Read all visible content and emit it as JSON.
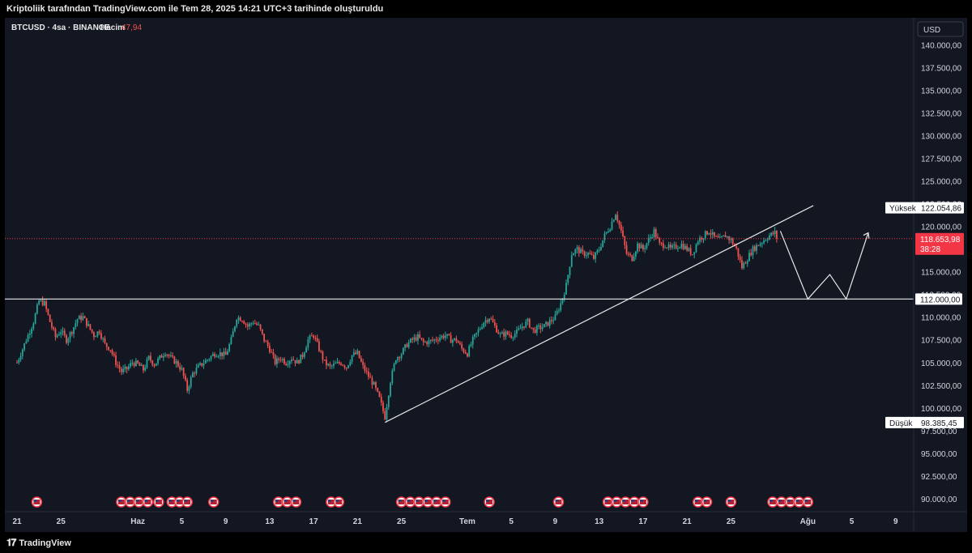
{
  "header": {
    "attribution": "Kriptoliik tarafından TradingView.com ile Tem 28, 2025 14:21 UTC+3 tarihinde oluşturuldu"
  },
  "footer": {
    "brand": "TradingView",
    "logo": "tradingview-logo"
  },
  "legend": {
    "symbol": "BTCUSD · 4sa · BINANCE",
    "volume_label": "Hacim",
    "volume_value": "47,94"
  },
  "currency": "USD",
  "colors": {
    "up": "#26a69a",
    "down": "#ef5350",
    "background": "#131722",
    "price_line": "#f23645",
    "line": "#e8e8e8"
  },
  "markers": {
    "high_label": "Yüksek",
    "high_value": "122.054,86",
    "low_label": "Düşük",
    "low_value": "98.385,45",
    "current_price": "118.653,98",
    "countdown": "38:28",
    "level_value": "112.000,00"
  },
  "event_icon": "us-flag-icon",
  "chart_data": {
    "type": "candlestick",
    "title": "BTCUSD · 4sa · BINANCE",
    "ylim": [
      89000,
      142200
    ],
    "y_ticks": [
      {
        "v": 140000,
        "label": "140.000,00"
      },
      {
        "v": 137500,
        "label": "137.500,00"
      },
      {
        "v": 135000,
        "label": "135.000,00"
      },
      {
        "v": 132500,
        "label": "132.500,00"
      },
      {
        "v": 130000,
        "label": "130.000,00"
      },
      {
        "v": 127500,
        "label": "127.500,00"
      },
      {
        "v": 125000,
        "label": "125.000,00"
      },
      {
        "v": 122500,
        "label": "122.500,00"
      },
      {
        "v": 120000,
        "label": "120.000,00"
      },
      {
        "v": 117500,
        "label": "117.500,00"
      },
      {
        "v": 115000,
        "label": "115.000,00"
      },
      {
        "v": 112500,
        "label": "112.500,00"
      },
      {
        "v": 110000,
        "label": "110.000,00"
      },
      {
        "v": 107500,
        "label": "107.500,00"
      },
      {
        "v": 105000,
        "label": "105.000,00"
      },
      {
        "v": 102500,
        "label": "102.500,00"
      },
      {
        "v": 100000,
        "label": "100.000,00"
      },
      {
        "v": 97500,
        "label": "97.500,00"
      },
      {
        "v": 95000,
        "label": "95.000,00"
      },
      {
        "v": 92500,
        "label": "92.500,00"
      },
      {
        "v": 90000,
        "label": "90.000,00"
      }
    ],
    "x_ticks": [
      {
        "day": 0,
        "label": "21"
      },
      {
        "day": 4,
        "label": "25"
      },
      {
        "day": 11,
        "label": "Haz"
      },
      {
        "day": 15,
        "label": "5"
      },
      {
        "day": 19,
        "label": "9"
      },
      {
        "day": 23,
        "label": "13"
      },
      {
        "day": 27,
        "label": "17"
      },
      {
        "day": 31,
        "label": "21"
      },
      {
        "day": 35,
        "label": "25"
      },
      {
        "day": 41,
        "label": "Tem"
      },
      {
        "day": 45,
        "label": "5"
      },
      {
        "day": 49,
        "label": "9"
      },
      {
        "day": 53,
        "label": "13"
      },
      {
        "day": 57,
        "label": "17"
      },
      {
        "day": 61,
        "label": "21"
      },
      {
        "day": 65,
        "label": "25"
      },
      {
        "day": 72,
        "label": "Ağu"
      },
      {
        "day": 76,
        "label": "5"
      },
      {
        "day": 80,
        "label": "9"
      }
    ],
    "x_note": "x values are days since May 21, 2025",
    "price_path": [
      [
        0.0,
        105000
      ],
      [
        0.5,
        106500
      ],
      [
        1.0,
        108000
      ],
      [
        1.5,
        109500
      ],
      [
        2.0,
        111800
      ],
      [
        2.5,
        111500
      ],
      [
        3.0,
        109500
      ],
      [
        3.5,
        107800
      ],
      [
        4.0,
        108500
      ],
      [
        4.5,
        107500
      ],
      [
        5.0,
        108500
      ],
      [
        5.5,
        109800
      ],
      [
        6.0,
        110000
      ],
      [
        6.5,
        109000
      ],
      [
        7.0,
        108000
      ],
      [
        7.5,
        108500
      ],
      [
        8.0,
        107000
      ],
      [
        8.5,
        106500
      ],
      [
        9.0,
        105000
      ],
      [
        9.5,
        104000
      ],
      [
        10.0,
        104300
      ],
      [
        10.5,
        105000
      ],
      [
        11.0,
        104800
      ],
      [
        11.5,
        104200
      ],
      [
        12.0,
        105500
      ],
      [
        12.5,
        104800
      ],
      [
        13.0,
        105500
      ],
      [
        13.5,
        106200
      ],
      [
        14.0,
        105500
      ],
      [
        14.5,
        105000
      ],
      [
        15.0,
        104200
      ],
      [
        15.5,
        102000
      ],
      [
        16.0,
        103800
      ],
      [
        16.5,
        104500
      ],
      [
        17.0,
        105000
      ],
      [
        17.5,
        105500
      ],
      [
        18.0,
        106000
      ],
      [
        18.5,
        106000
      ],
      [
        19.0,
        105800
      ],
      [
        19.5,
        107500
      ],
      [
        20.0,
        110000
      ],
      [
        20.5,
        109800
      ],
      [
        21.0,
        109000
      ],
      [
        21.5,
        109500
      ],
      [
        22.0,
        109000
      ],
      [
        22.5,
        107500
      ],
      [
        23.0,
        106500
      ],
      [
        23.5,
        105000
      ],
      [
        24.0,
        105500
      ],
      [
        24.5,
        105000
      ],
      [
        25.0,
        105500
      ],
      [
        25.5,
        105000
      ],
      [
        26.0,
        105800
      ],
      [
        26.5,
        107500
      ],
      [
        27.0,
        108000
      ],
      [
        27.5,
        106500
      ],
      [
        28.0,
        105000
      ],
      [
        28.5,
        104500
      ],
      [
        29.0,
        104800
      ],
      [
        29.5,
        105000
      ],
      [
        30.0,
        104500
      ],
      [
        30.5,
        105800
      ],
      [
        31.0,
        106000
      ],
      [
        31.5,
        104500
      ],
      [
        32.0,
        103500
      ],
      [
        32.5,
        102500
      ],
      [
        33.0,
        101000
      ],
      [
        33.5,
        99000
      ],
      [
        34.0,
        103000
      ],
      [
        34.5,
        105500
      ],
      [
        35.0,
        106000
      ],
      [
        35.5,
        107000
      ],
      [
        36.0,
        107500
      ],
      [
        36.5,
        107800
      ],
      [
        37.0,
        107200
      ],
      [
        37.5,
        107300
      ],
      [
        38.0,
        107500
      ],
      [
        38.5,
        107800
      ],
      [
        39.0,
        108000
      ],
      [
        39.5,
        107500
      ],
      [
        40.0,
        107500
      ],
      [
        40.5,
        106500
      ],
      [
        41.0,
        106000
      ],
      [
        41.5,
        107500
      ],
      [
        42.0,
        108500
      ],
      [
        42.5,
        109500
      ],
      [
        43.0,
        110000
      ],
      [
        43.5,
        109000
      ],
      [
        44.0,
        108000
      ],
      [
        44.5,
        108200
      ],
      [
        45.0,
        108000
      ],
      [
        45.5,
        108300
      ],
      [
        46.0,
        109000
      ],
      [
        46.5,
        109500
      ],
      [
        47.0,
        108500
      ],
      [
        47.5,
        108800
      ],
      [
        48.0,
        109000
      ],
      [
        48.5,
        109500
      ],
      [
        49.0,
        110000
      ],
      [
        49.5,
        111500
      ],
      [
        50.0,
        113500
      ],
      [
        50.5,
        117000
      ],
      [
        51.0,
        117500
      ],
      [
        51.5,
        117000
      ],
      [
        52.0,
        117000
      ],
      [
        52.5,
        116500
      ],
      [
        53.0,
        117500
      ],
      [
        53.5,
        119000
      ],
      [
        54.0,
        120000
      ],
      [
        54.5,
        121500
      ],
      [
        55.0,
        119500
      ],
      [
        55.5,
        117000
      ],
      [
        56.0,
        116500
      ],
      [
        56.5,
        118000
      ],
      [
        57.0,
        117500
      ],
      [
        57.5,
        118500
      ],
      [
        58.0,
        119500
      ],
      [
        58.5,
        118000
      ],
      [
        59.0,
        118000
      ],
      [
        59.5,
        117500
      ],
      [
        60.0,
        117800
      ],
      [
        60.5,
        118000
      ],
      [
        61.0,
        117500
      ],
      [
        61.5,
        117000
      ],
      [
        62.0,
        118500
      ],
      [
        62.5,
        119000
      ],
      [
        63.0,
        119500
      ],
      [
        63.5,
        118800
      ],
      [
        64.0,
        118500
      ],
      [
        64.5,
        119000
      ],
      [
        65.0,
        118500
      ],
      [
        65.5,
        117500
      ],
      [
        66.0,
        115500
      ],
      [
        66.5,
        116500
      ],
      [
        67.0,
        117500
      ],
      [
        67.5,
        118000
      ],
      [
        68.0,
        118500
      ],
      [
        68.5,
        119000
      ],
      [
        69.0,
        119300
      ],
      [
        69.2,
        118654
      ]
    ],
    "annotations": {
      "trendline": [
        [
          33.5,
          98400
        ],
        [
          72.5,
          122300
        ]
      ],
      "horizontal_level": 112000,
      "projection_path": [
        [
          69.5,
          119500
        ],
        [
          72.0,
          112000
        ],
        [
          74.0,
          114700
        ],
        [
          75.5,
          112000
        ],
        [
          77.5,
          119300
        ]
      ],
      "event_days": [
        1.8,
        9.5,
        10.3,
        11.1,
        11.9,
        12.9,
        14.1,
        14.8,
        15.5,
        17.9,
        23.8,
        24.6,
        25.4,
        28.6,
        29.3,
        35.0,
        35.8,
        36.6,
        37.4,
        38.2,
        39.0,
        43.0,
        49.3,
        53.8,
        54.6,
        55.4,
        56.2,
        57.0,
        62.0,
        62.8,
        65.0,
        68.8,
        69.6,
        70.4,
        71.2,
        72.0
      ]
    }
  }
}
